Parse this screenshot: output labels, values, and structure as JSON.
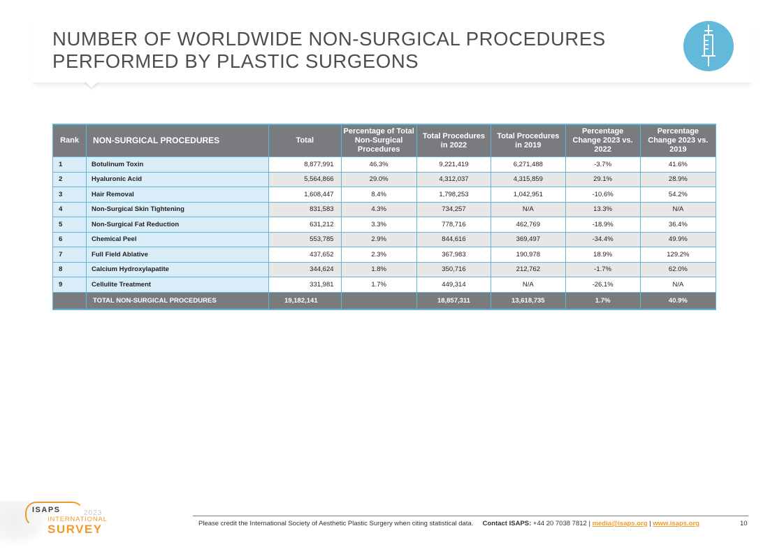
{
  "title": {
    "line1": "NUMBER OF WORLDWIDE NON-SURGICAL PROCEDURES",
    "line2": "PERFORMED BY PLASTIC SURGEONS",
    "icon": "syringe-icon",
    "badge_color": "#62b9d9"
  },
  "table": {
    "headers": {
      "rank": "Rank",
      "procedure": "NON-SURGICAL PROCEDURES",
      "total": "Total",
      "pct_total": "Percentage of Total Non-Surgical Procedures",
      "total_2022": "Total Procedures in 2022",
      "total_2019": "Total Procedures in 2019",
      "chg_2022": "Percentage Change 2023 vs. 2022",
      "chg_2019": "Percentage Change 2023 vs. 2019"
    },
    "rows": [
      {
        "rank": "1",
        "name": "Botulinum Toxin",
        "total": "8,877,991",
        "pct": "46.3%",
        "y2022": "9,221,419",
        "y2019": "6,271,488",
        "chg22": "-3.7%",
        "chg19": "41.6%"
      },
      {
        "rank": "2",
        "name": "Hyaluronic Acid",
        "total": "5,564,866",
        "pct": "29.0%",
        "y2022": "4,312,037",
        "y2019": "4,315,859",
        "chg22": "29.1%",
        "chg19": "28.9%"
      },
      {
        "rank": "3",
        "name": "Hair Removal",
        "total": "1,608,447",
        "pct": "8.4%",
        "y2022": "1,798,253",
        "y2019": "1,042,951",
        "chg22": "-10.6%",
        "chg19": "54.2%"
      },
      {
        "rank": "4",
        "name": "Non-Surgical Skin Tightening",
        "total": "831,583",
        "pct": "4.3%",
        "y2022": "734,257",
        "y2019": "N/A",
        "chg22": "13.3%",
        "chg19": "N/A"
      },
      {
        "rank": "5",
        "name": "Non-Surgical Fat Reduction",
        "total": "631,212",
        "pct": "3.3%",
        "y2022": "778,716",
        "y2019": "462,769",
        "chg22": "-18.9%",
        "chg19": "36.4%"
      },
      {
        "rank": "6",
        "name": "Chemical Peel",
        "total": "553,785",
        "pct": "2.9%",
        "y2022": "844,616",
        "y2019": "369,497",
        "chg22": "-34.4%",
        "chg19": "49.9%"
      },
      {
        "rank": "7",
        "name": "Full Field Ablative",
        "total": "437,652",
        "pct": "2.3%",
        "y2022": "367,983",
        "y2019": "190,978",
        "chg22": "18.9%",
        "chg19": "129.2%"
      },
      {
        "rank": "8",
        "name": "Calcium Hydroxylapatite",
        "total": "344,624",
        "pct": "1.8%",
        "y2022": "350,716",
        "y2019": "212,762",
        "chg22": "-1.7%",
        "chg19": "62.0%"
      },
      {
        "rank": "9",
        "name": "Cellulite Treatment",
        "total": "331,981",
        "pct": "1.7%",
        "y2022": "449,314",
        "y2019": "N/A",
        "chg22": "-26.1%",
        "chg19": "N/A"
      }
    ],
    "total_row": {
      "label": "TOTAL NON-SURGICAL PROCEDURES",
      "total": "19,182,141",
      "pct": "",
      "y2022": "18,857,311",
      "y2019": "13,618,735",
      "chg22": "1.7%",
      "chg19": "40.9%"
    }
  },
  "footer": {
    "credit": "Please credit the International Society of Aesthetic Plastic Surgery when citing statistical data.",
    "contact_label": "Contact ISAPS:",
    "phone": " +44 20 7038 7812 | ",
    "email": "media@isaps.org",
    "sep": " | ",
    "website": "www.isaps.org",
    "page_number": "10"
  },
  "logo": {
    "brand": "ISAPS",
    "year": "2023",
    "line1": "INTERNATIONAL",
    "line2": "SURVEY",
    "accent": "#f09a2e"
  }
}
